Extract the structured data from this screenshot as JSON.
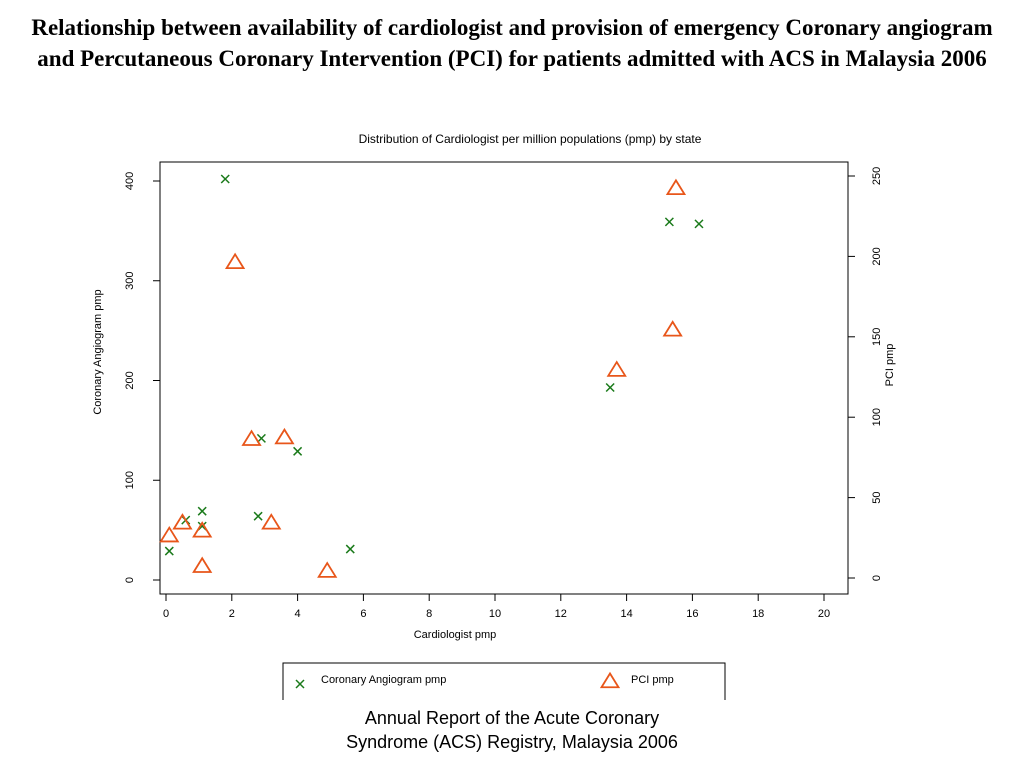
{
  "page": {
    "title": "Relationship between availability of cardiologist and provision of emergency Coronary angiogram and Percutaneous Coronary Intervention (PCI) for patients admitted with ACS in Malaysia 2006",
    "caption_line1": "Annual Report of the Acute Coronary",
    "caption_line2": "Syndrome (ACS) Registry, Malaysia 2006"
  },
  "chart_data": {
    "type": "scatter",
    "title": "Distribution of Cardiologist per million populations (pmp) by state",
    "xlabel": "Cardiologist pmp",
    "ylabel": "Coronary Angiogram pmp",
    "y2label": "PCI pmp",
    "xlim": [
      0,
      20
    ],
    "ylim": [
      0,
      400
    ],
    "y2lim": [
      0,
      250
    ],
    "xticks": [
      "0",
      "2",
      "4",
      "6",
      "8",
      "10",
      "12",
      "14",
      "16",
      "18",
      "20"
    ],
    "yticks": [
      "0",
      "100",
      "200",
      "300",
      "400"
    ],
    "y2ticks": [
      "0",
      "50",
      "100",
      "150",
      "200",
      "250"
    ],
    "grid": false,
    "legend_position": "bottom",
    "series": [
      {
        "name": "Coronary Angiogram pmp",
        "axis": "left",
        "marker": "x",
        "color": "#1a7a1a",
        "points": [
          [
            0.1,
            29
          ],
          [
            0.6,
            60
          ],
          [
            1.1,
            69
          ],
          [
            1.1,
            54
          ],
          [
            1.8,
            402
          ],
          [
            2.8,
            64
          ],
          [
            2.9,
            142
          ],
          [
            4.0,
            129
          ],
          [
            5.6,
            31
          ],
          [
            13.5,
            193
          ],
          [
            15.3,
            359
          ],
          [
            16.2,
            357
          ]
        ]
      },
      {
        "name": "PCI pmp",
        "axis": "right",
        "marker": "triangle",
        "color": "#e8561a",
        "points": [
          [
            0.1,
            26
          ],
          [
            0.5,
            34
          ],
          [
            1.1,
            29
          ],
          [
            1.1,
            7
          ],
          [
            2.1,
            196
          ],
          [
            2.6,
            86
          ],
          [
            3.2,
            34
          ],
          [
            3.6,
            87
          ],
          [
            4.9,
            4
          ],
          [
            13.7,
            129
          ],
          [
            15.4,
            154
          ],
          [
            15.5,
            242
          ]
        ]
      }
    ]
  }
}
